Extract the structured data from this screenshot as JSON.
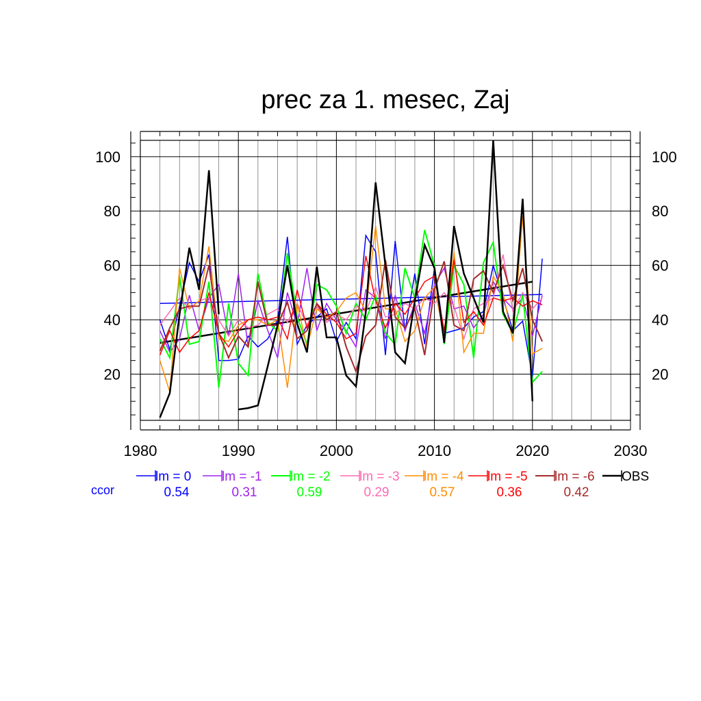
{
  "chart_data": {
    "type": "line",
    "title": "prec za 1. mesec, Zaj",
    "xlabel": "",
    "ylabel": "",
    "xlim": [
      1980,
      2030
    ],
    "ylim": [
      3,
      106
    ],
    "x_ticks": [
      1980,
      1990,
      2000,
      2010,
      2020,
      2030
    ],
    "y_ticks": [
      20,
      40,
      60,
      80,
      100
    ],
    "grid": true,
    "x": [
      1982,
      1983,
      1984,
      1985,
      1986,
      1987,
      1988,
      1989,
      1990,
      1991,
      1992,
      1993,
      1994,
      1995,
      1996,
      1997,
      1998,
      1999,
      2000,
      2001,
      2002,
      2003,
      2004,
      2005,
      2006,
      2007,
      2008,
      2009,
      2010,
      2011,
      2012,
      2013,
      2014,
      2015,
      2016,
      2017,
      2018,
      2019,
      2020,
      2021
    ],
    "series": [
      {
        "name": "lm = 0",
        "color": "#0000ff",
        "width": 1.5,
        "values": [
          40,
          29,
          45,
          61,
          54,
          64,
          25,
          25,
          25.5,
          34,
          30,
          33,
          40,
          70.5,
          31,
          38,
          41,
          44,
          32,
          39,
          33,
          71,
          65,
          27,
          69,
          36,
          57,
          31,
          59,
          35,
          36,
          37,
          41,
          43,
          60,
          48,
          36,
          39.5,
          19,
          62.5
        ],
        "trend": [
          46,
          49.3
        ]
      },
      {
        "name": "lm = -1",
        "color": "#a020f0",
        "width": 1.5,
        "values": [
          36,
          28,
          33,
          49,
          36,
          48,
          53,
          34,
          57,
          30,
          47,
          36,
          26,
          50,
          38,
          59,
          36,
          46,
          40,
          36,
          30,
          51,
          48,
          33,
          49,
          36,
          46,
          35,
          53,
          59,
          44,
          45,
          37,
          42,
          54,
          48,
          44,
          48,
          34,
          49
        ]
      },
      {
        "name": "lm = -2",
        "color": "#00ff00",
        "width": 2,
        "values": [
          33,
          26,
          56,
          31,
          32,
          54,
          15,
          46,
          24,
          19.5,
          57,
          39,
          36,
          64.5,
          41,
          31,
          53,
          51,
          45,
          35,
          46,
          40,
          49,
          35,
          31,
          59,
          48,
          73,
          60,
          31,
          60,
          53,
          26,
          61,
          68.5,
          42,
          35,
          49,
          17,
          21
        ]
      },
      {
        "name": "lm = -3",
        "color": "#ff69b4",
        "width": 1.5,
        "values": [
          38,
          43,
          48,
          44,
          47,
          48,
          40,
          34,
          40,
          37,
          38,
          42,
          44,
          39,
          46,
          38,
          45,
          39,
          42,
          40,
          45,
          43,
          52,
          41,
          42,
          46,
          44,
          48,
          46,
          50,
          45,
          33,
          44,
          46,
          48,
          64,
          43,
          50,
          44,
          48
        ]
      },
      {
        "name": "lm = -4",
        "color": "#ff8c00",
        "width": 1.5,
        "values": [
          25,
          13.5,
          59,
          44,
          47,
          67,
          33,
          32,
          38,
          40,
          40,
          38,
          40,
          15,
          46,
          30,
          44,
          41,
          43,
          48,
          50,
          43,
          74.5,
          44,
          44,
          32,
          36,
          48,
          52,
          34,
          65,
          28,
          35,
          35,
          56,
          50,
          32,
          78,
          27.5,
          29.5
        ]
      },
      {
        "name": "lm = -5",
        "color": "#ff0000",
        "width": 1.5,
        "values": [
          27,
          36,
          28,
          33,
          36,
          50,
          35,
          30,
          36,
          40,
          41,
          40,
          41,
          33,
          51,
          37,
          46,
          42,
          39,
          33,
          35,
          63.5,
          47,
          37,
          46,
          42,
          48,
          54,
          56,
          36,
          62,
          39,
          43,
          38,
          48,
          47,
          48,
          45,
          47,
          45.5
        ]
      },
      {
        "name": "lm = -6",
        "color": "#a52a2a",
        "width": 2,
        "values": [
          28.5,
          37,
          44,
          45,
          45,
          60,
          35,
          26,
          34,
          30,
          54,
          38,
          38,
          46.5,
          33,
          36,
          46,
          40,
          43,
          30,
          21,
          34,
          38,
          62,
          41,
          37,
          44,
          27,
          51,
          61.5,
          38,
          36,
          55,
          58,
          50,
          60,
          47,
          59,
          40,
          32
        ]
      },
      {
        "name": "OBS",
        "color": "#000000",
        "width": 2.5,
        "values": [
          4,
          13,
          42,
          66.5,
          51,
          95,
          42,
          null,
          7,
          7.5,
          8.5,
          23,
          38,
          60,
          38.5,
          28,
          59.5,
          33.5,
          33.5,
          19.5,
          15.5,
          43,
          90.5,
          60,
          28,
          24,
          47,
          67.5,
          59,
          31.5,
          74.5,
          57,
          48,
          39,
          106,
          43,
          35,
          84.5,
          10,
          null
        ],
        "trend": [
          31.5,
          54
        ]
      }
    ],
    "legend": {
      "placement": "below",
      "corr_label": "ccor",
      "corr_values": [
        "0.54",
        "0.31",
        "0.59",
        "0.29",
        "0.57",
        "0.36",
        "0.42"
      ]
    }
  }
}
